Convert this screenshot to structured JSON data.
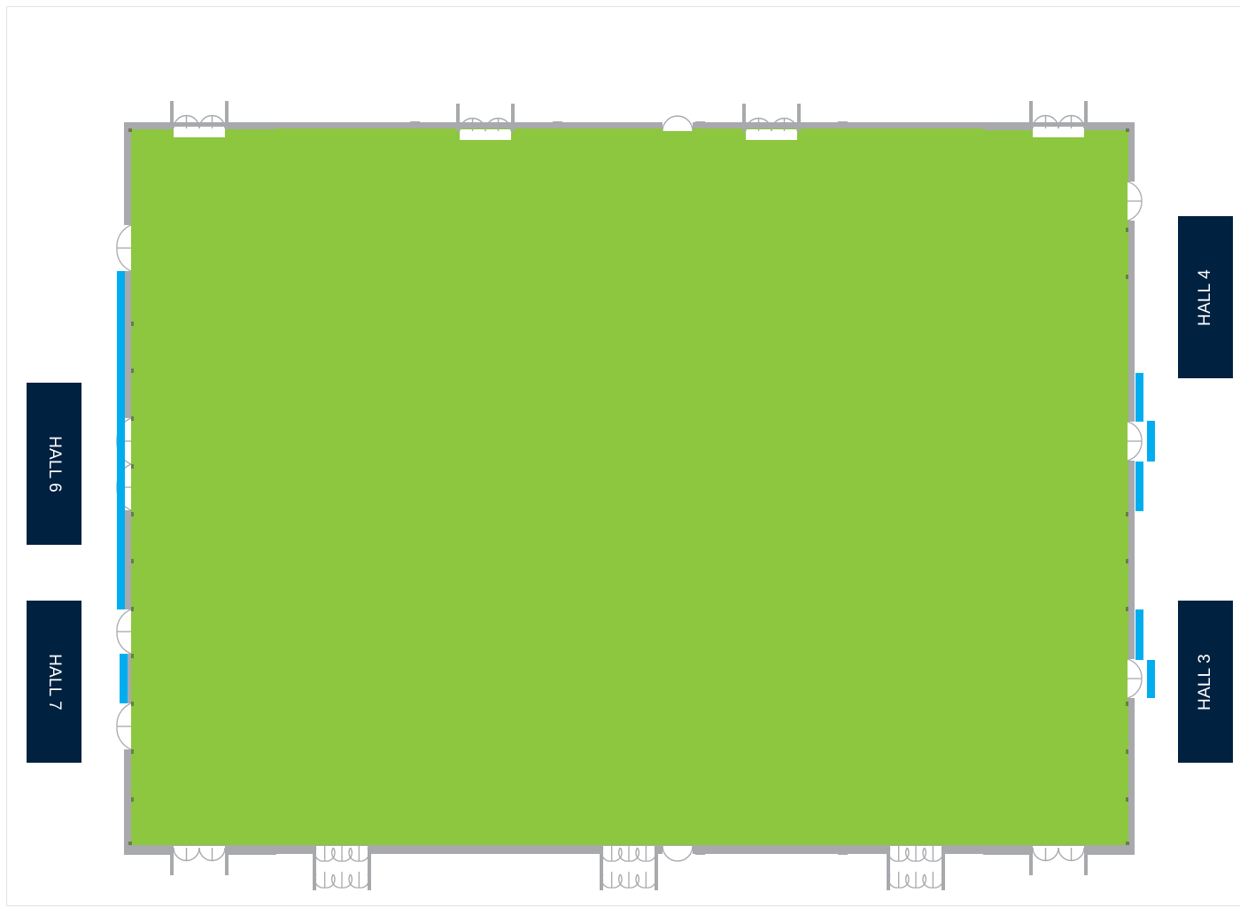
{
  "colors": {
    "floor": "#8dc63f",
    "wall": "#a7a9ac",
    "wall_mark": "#6d7a4f",
    "connector": "#00aeef",
    "hall_box": "#002140",
    "hall_text": "#ffffff",
    "door_line": "#a7a9ac",
    "door_fill": "#ffffff"
  },
  "halls": {
    "left_upper": "HALL 6",
    "left_lower": "HALL 7",
    "right_upper": "HALL 4",
    "right_lower": "HALL 3"
  }
}
